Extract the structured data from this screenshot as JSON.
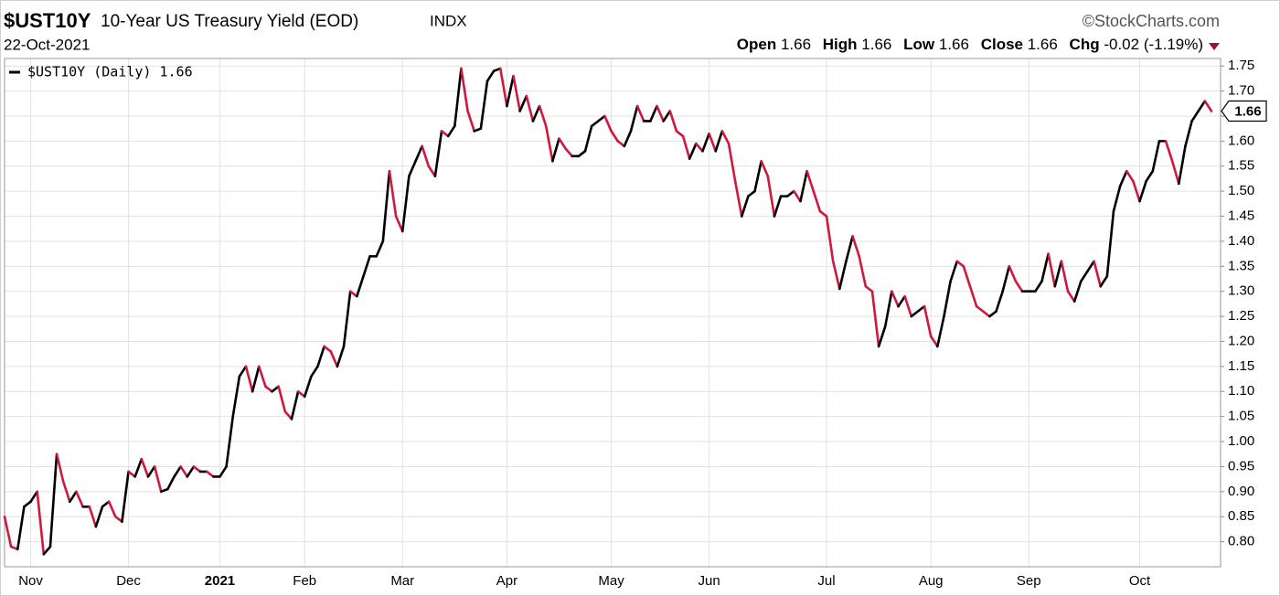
{
  "chart_data": {
    "type": "line",
    "title": "$UST10Y",
    "subtitle": "10-Year US Treasury Yield (EOD)",
    "exchange": "INDX",
    "date": "22-Oct-2021",
    "credit": "©StockCharts.com",
    "quote": {
      "open_label": "Open",
      "open": 1.66,
      "high_label": "High",
      "high": 1.66,
      "low_label": "Low",
      "low": 1.66,
      "close_label": "Close",
      "close": 1.66,
      "chg_label": "Chg",
      "chg": -0.02,
      "chg_pct": {
        "value": -1.19,
        "label": "(-1.19%)"
      }
    },
    "categories": [
      null,
      null,
      null,
      null,
      "Nov",
      null,
      null,
      null,
      null,
      null,
      null,
      null,
      null,
      null,
      null,
      null,
      null,
      null,
      null,
      "Dec",
      null,
      null,
      null,
      null,
      null,
      null,
      null,
      null,
      null,
      null,
      null,
      null,
      null,
      "2021",
      null,
      null,
      null,
      null,
      null,
      null,
      null,
      null,
      null,
      null,
      null,
      null,
      "Feb",
      null,
      null,
      null,
      null,
      null,
      null,
      null,
      null,
      null,
      null,
      null,
      null,
      null,
      null,
      "Mar",
      null,
      null,
      null,
      null,
      null,
      null,
      null,
      null,
      null,
      null,
      null,
      null,
      null,
      null,
      null,
      "Apr",
      null,
      null,
      null,
      null,
      null,
      null,
      null,
      null,
      null,
      null,
      null,
      null,
      null,
      null,
      null,
      "May",
      null,
      null,
      null,
      null,
      null,
      null,
      null,
      null,
      null,
      null,
      null,
      null,
      null,
      null,
      "Jun",
      null,
      null,
      null,
      null,
      null,
      null,
      null,
      null,
      null,
      null,
      null,
      null,
      null,
      null,
      null,
      null,
      null,
      "Jul",
      null,
      null,
      null,
      null,
      null,
      null,
      null,
      null,
      null,
      null,
      null,
      null,
      null,
      null,
      null,
      "Aug",
      null,
      null,
      null,
      null,
      null,
      null,
      null,
      null,
      null,
      null,
      null,
      null,
      null,
      null,
      "Sep",
      null,
      null,
      null,
      null,
      null,
      null,
      null,
      null,
      null,
      null,
      null,
      null,
      null,
      null,
      null,
      null,
      "Oct",
      null,
      null,
      null,
      null,
      null,
      null,
      null,
      null,
      null,
      null,
      null
    ],
    "series": [
      {
        "name": "$UST10Y (Daily) 1.66",
        "color": "#000000",
        "down_color": "#d0183f",
        "values": [
          0.85,
          0.79,
          0.785,
          0.87,
          0.88,
          0.9,
          0.775,
          0.79,
          0.975,
          0.92,
          0.88,
          0.9,
          0.87,
          0.87,
          0.83,
          0.87,
          0.88,
          0.85,
          0.84,
          0.94,
          0.93,
          0.965,
          0.93,
          0.95,
          0.9,
          0.905,
          0.93,
          0.95,
          0.93,
          0.95,
          0.94,
          0.94,
          0.93,
          0.93,
          0.95,
          1.05,
          1.13,
          1.15,
          1.1,
          1.15,
          1.11,
          1.1,
          1.11,
          1.06,
          1.045,
          1.1,
          1.09,
          1.13,
          1.15,
          1.19,
          1.18,
          1.15,
          1.19,
          1.3,
          1.29,
          1.33,
          1.37,
          1.37,
          1.4,
          1.54,
          1.45,
          1.42,
          1.53,
          1.56,
          1.59,
          1.55,
          1.53,
          1.62,
          1.61,
          1.63,
          1.745,
          1.66,
          1.62,
          1.625,
          1.72,
          1.74,
          1.745,
          1.67,
          1.73,
          1.66,
          1.69,
          1.64,
          1.67,
          1.63,
          1.56,
          1.605,
          1.585,
          1.57,
          1.57,
          1.58,
          1.63,
          1.64,
          1.65,
          1.62,
          1.6,
          1.59,
          1.62,
          1.67,
          1.64,
          1.64,
          1.67,
          1.64,
          1.66,
          1.62,
          1.61,
          1.565,
          1.595,
          1.58,
          1.615,
          1.58,
          1.62,
          1.595,
          1.52,
          1.45,
          1.49,
          1.5,
          1.56,
          1.53,
          1.45,
          1.49,
          1.49,
          1.5,
          1.48,
          1.54,
          1.5,
          1.46,
          1.45,
          1.36,
          1.305,
          1.36,
          1.41,
          1.37,
          1.31,
          1.3,
          1.19,
          1.23,
          1.3,
          1.27,
          1.29,
          1.25,
          1.26,
          1.27,
          1.21,
          1.19,
          1.25,
          1.32,
          1.36,
          1.35,
          1.31,
          1.27,
          1.26,
          1.25,
          1.26,
          1.3,
          1.35,
          1.32,
          1.3,
          1.3,
          1.3,
          1.32,
          1.375,
          1.31,
          1.36,
          1.3,
          1.28,
          1.32,
          1.34,
          1.36,
          1.31,
          1.33,
          1.46,
          1.51,
          1.54,
          1.52,
          1.48,
          1.52,
          1.54,
          1.6,
          1.6,
          1.56,
          1.515,
          1.59,
          1.64,
          1.66,
          1.68,
          1.66
        ]
      }
    ],
    "ylim": [
      0.75,
      1.765
    ],
    "yticks": [
      {
        "value": 0.8,
        "label": "0.80"
      },
      {
        "value": 0.85,
        "label": "0.85"
      },
      {
        "value": 0.9,
        "label": "0.90"
      },
      {
        "value": 0.95,
        "label": "0.95"
      },
      {
        "value": 1.0,
        "label": "1.00"
      },
      {
        "value": 1.05,
        "label": "1.05"
      },
      {
        "value": 1.1,
        "label": "1.10"
      },
      {
        "value": 1.15,
        "label": "1.15"
      },
      {
        "value": 1.2,
        "label": "1.20"
      },
      {
        "value": 1.25,
        "label": "1.25"
      },
      {
        "value": 1.3,
        "label": "1.30"
      },
      {
        "value": 1.35,
        "label": "1.35"
      },
      {
        "value": 1.4,
        "label": "1.40"
      },
      {
        "value": 1.45,
        "label": "1.45"
      },
      {
        "value": 1.5,
        "label": "1.50"
      },
      {
        "value": 1.55,
        "label": "1.55"
      },
      {
        "value": 1.6,
        "label": "1.60"
      },
      {
        "value": 1.65,
        "label": "1.65"
      },
      {
        "value": 1.7,
        "label": "1.70"
      },
      {
        "value": 1.75,
        "label": "1.75"
      }
    ],
    "grid": true,
    "legend": "top-left"
  }
}
